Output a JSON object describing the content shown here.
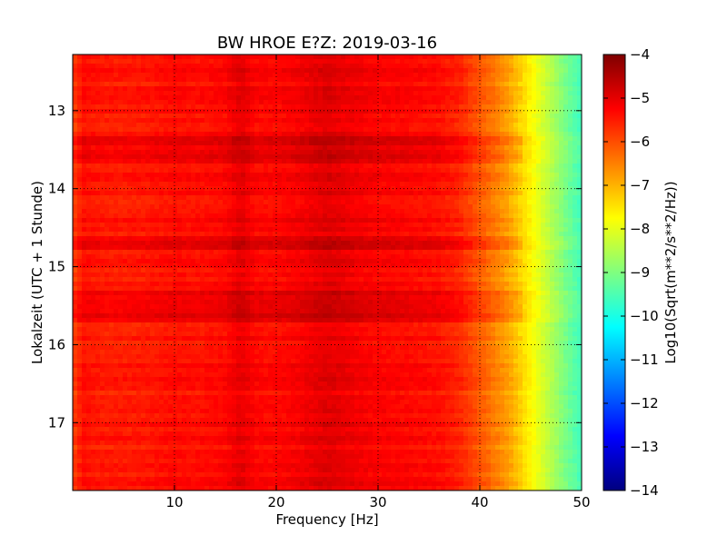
{
  "chart_data": {
    "type": "heatmap",
    "title": "BW HROE E?Z: 2019-03-16",
    "xlabel": "Frequency [Hz]",
    "ylabel": "Lokalzeit (UTC + 1 Stunde)",
    "xlim": [
      0,
      50
    ],
    "ylim": [
      17.87,
      12.28
    ],
    "y_inverted": true,
    "x_ticks": [
      10,
      20,
      30,
      40,
      50
    ],
    "y_ticks": [
      13,
      14,
      15,
      16,
      17
    ],
    "grid": true,
    "colormap": "jet",
    "colorbar": {
      "label": "Log10(Sqrt(m**2/s**2/Hz))",
      "range": [
        -14,
        -4
      ],
      "ticks": [
        -4,
        -5,
        -6,
        -7,
        -8,
        -9,
        -10,
        -11,
        -12,
        -13,
        -14
      ]
    },
    "frequency_profile": {
      "frequency_hz": [
        0,
        1,
        3,
        5,
        8,
        10,
        12,
        15,
        16.5,
        18,
        20,
        22,
        25,
        28,
        30,
        33,
        36,
        38,
        40,
        42,
        43,
        44,
        45,
        46,
        47,
        48,
        49,
        50
      ],
      "log10_amplitude": [
        -5.9,
        -5.4,
        -5.5,
        -5.5,
        -5.45,
        -5.35,
        -5.4,
        -5.3,
        -5.0,
        -5.3,
        -5.3,
        -5.2,
        -4.95,
        -5.15,
        -5.25,
        -5.3,
        -5.4,
        -5.6,
        -6.1,
        -6.6,
        -6.9,
        -7.3,
        -7.7,
        -8.1,
        -8.5,
        -8.9,
        -9.3,
        -9.6
      ]
    },
    "active_periods_local_time": [
      {
        "start": 13.3,
        "end": 13.7
      },
      {
        "start": 14.6,
        "end": 14.8
      },
      {
        "start": 15.3,
        "end": 15.7
      }
    ]
  }
}
